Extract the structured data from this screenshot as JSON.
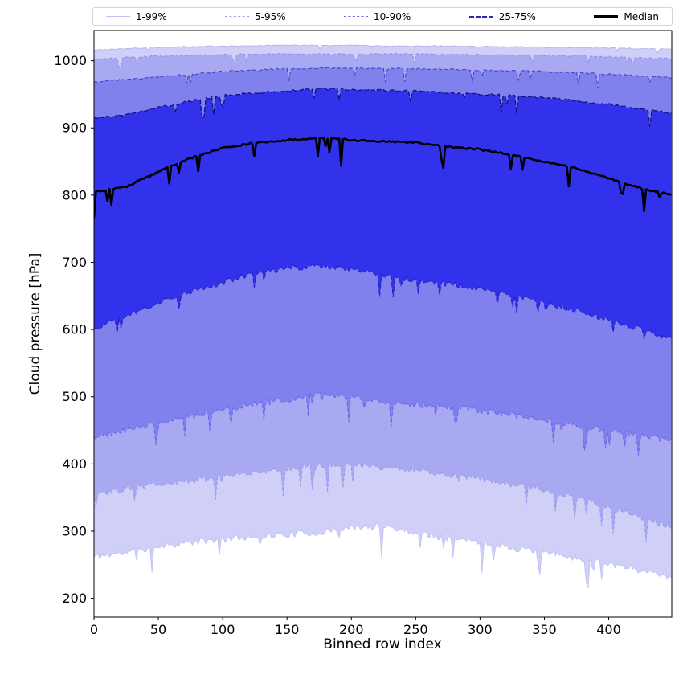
{
  "chart_data": {
    "type": "area",
    "title": "",
    "xlabel": "Binned row index",
    "ylabel": "Cloud pressure [hPa]",
    "xlim": [
      0,
      449
    ],
    "ylim": [
      172,
      1045
    ],
    "x_ticks": [
      0,
      50,
      100,
      150,
      200,
      250,
      300,
      350,
      400
    ],
    "y_ticks": [
      200,
      300,
      400,
      500,
      600,
      700,
      800,
      900,
      1000
    ],
    "grid": false,
    "legend_position": "top-outside",
    "control_x": [
      0,
      25,
      50,
      75,
      100,
      125,
      150,
      175,
      200,
      225,
      250,
      275,
      300,
      325,
      350,
      375,
      400,
      425,
      450
    ],
    "bands": [
      {
        "name": "1-99",
        "lower": "p1",
        "upper": "p99",
        "fill": "#cfcff8"
      },
      {
        "name": "5-95",
        "lower": "p5",
        "upper": "p95",
        "fill": "#a9a9f2"
      },
      {
        "name": "10-90",
        "lower": "p10",
        "upper": "p90",
        "fill": "#8181ee"
      },
      {
        "name": "25-75",
        "lower": "p25",
        "upper": "p75",
        "fill": "#3232ec"
      }
    ],
    "edges": {
      "p1": {
        "values": [
          262,
          268,
          278,
          283,
          288,
          292,
          295,
          298,
          305,
          308,
          298,
          290,
          283,
          275,
          268,
          260,
          252,
          242,
          232
        ],
        "jitter": 5,
        "spike_prob": 0.05,
        "spike_depth": [
          10,
          45
        ],
        "seed": 11,
        "line": {
          "color": "#c2c2f2",
          "width": 0.9,
          "dash": ""
        }
      },
      "p99": {
        "values": [
          1016,
          1018,
          1020,
          1021,
          1022,
          1022,
          1023,
          1023,
          1023,
          1022,
          1022,
          1022,
          1021,
          1021,
          1020,
          1020,
          1019,
          1018,
          1017
        ],
        "jitter": 0.8,
        "spike_prob": 0.03,
        "spike_depth": [
          3,
          8
        ],
        "seed": 21,
        "line": {
          "color": "#b4b4f2",
          "width": 0.9,
          "dash": ""
        }
      },
      "p5": {
        "values": [
          355,
          362,
          370,
          375,
          382,
          388,
          392,
          398,
          400,
          395,
          390,
          385,
          378,
          370,
          360,
          348,
          335,
          320,
          305
        ],
        "jitter": 4.5,
        "spike_prob": 0.05,
        "spike_depth": [
          8,
          40
        ],
        "seed": 31,
        "line": {
          "color": "#9a9af0",
          "width": 1,
          "dash": "4 2.5"
        }
      },
      "p95": {
        "values": [
          1002,
          1005,
          1007,
          1008,
          1009,
          1010,
          1010,
          1010,
          1010,
          1010,
          1010,
          1009,
          1009,
          1008,
          1008,
          1007,
          1006,
          1004,
          1003
        ],
        "jitter": 1,
        "spike_prob": 0.04,
        "spike_depth": [
          4,
          16
        ],
        "seed": 41,
        "line": {
          "color": "#8c8cee",
          "width": 1,
          "dash": "4 2.5"
        }
      },
      "p10": {
        "values": [
          440,
          450,
          462,
          470,
          480,
          490,
          495,
          505,
          500,
          492,
          488,
          485,
          480,
          472,
          465,
          458,
          450,
          442,
          435
        ],
        "jitter": 4.5,
        "spike_prob": 0.05,
        "spike_depth": [
          8,
          35
        ],
        "seed": 51,
        "line": {
          "color": "#6a6ae8",
          "width": 1.1,
          "dash": "5 2.5"
        }
      },
      "p90": {
        "values": [
          968,
          972,
          976,
          980,
          984,
          986,
          988,
          989,
          989,
          988,
          988,
          987,
          986,
          985,
          984,
          982,
          980,
          977,
          975
        ],
        "jitter": 1.2,
        "spike_prob": 0.05,
        "spike_depth": [
          5,
          22
        ],
        "seed": 61,
        "line": {
          "color": "#4343cf",
          "width": 1.1,
          "dash": "5 2.5"
        }
      },
      "p25": {
        "values": [
          600,
          620,
          640,
          655,
          670,
          685,
          690,
          695,
          690,
          680,
          672,
          668,
          660,
          650,
          640,
          628,
          615,
          600,
          585
        ],
        "jitter": 4,
        "spike_prob": 0.06,
        "spike_depth": [
          8,
          35
        ],
        "seed": 71,
        "line": {
          "color": "#2626c4",
          "width": 1.2,
          "dash": "6 2.5"
        }
      },
      "p75": {
        "values": [
          915,
          920,
          930,
          940,
          948,
          952,
          955,
          958,
          957,
          956,
          955,
          952,
          950,
          948,
          945,
          940,
          935,
          928,
          922
        ],
        "jitter": 1.5,
        "spike_prob": 0.06,
        "spike_depth": [
          6,
          28
        ],
        "seed": 81,
        "line": {
          "color": "#13137d",
          "width": 1.3,
          "dash": "6 2.5"
        }
      },
      "median": {
        "values": [
          805,
          812,
          835,
          855,
          870,
          878,
          882,
          885,
          882,
          880,
          878,
          872,
          868,
          860,
          850,
          840,
          825,
          810,
          800
        ],
        "jitter": 1.2,
        "spike_prob": 0.07,
        "spike_depth": [
          6,
          40
        ],
        "seed": 91,
        "line": {
          "color": "#000000",
          "width": 2.6,
          "dash": ""
        }
      }
    },
    "legend": [
      {
        "label": "1-99%",
        "color": "#c2c2f2",
        "dash": "solid",
        "width": 1
      },
      {
        "label": "5-95%",
        "color": "#9a9af0",
        "dash": "dashed",
        "width": 1
      },
      {
        "label": "10-90%",
        "color": "#6a6ae8",
        "dash": "dashed",
        "width": 1
      },
      {
        "label": "25-75%",
        "color": "#2a2ab0",
        "dash": "dashed",
        "width": 2
      },
      {
        "label": "Median",
        "color": "#000000",
        "dash": "solid",
        "width": 3
      }
    ]
  }
}
